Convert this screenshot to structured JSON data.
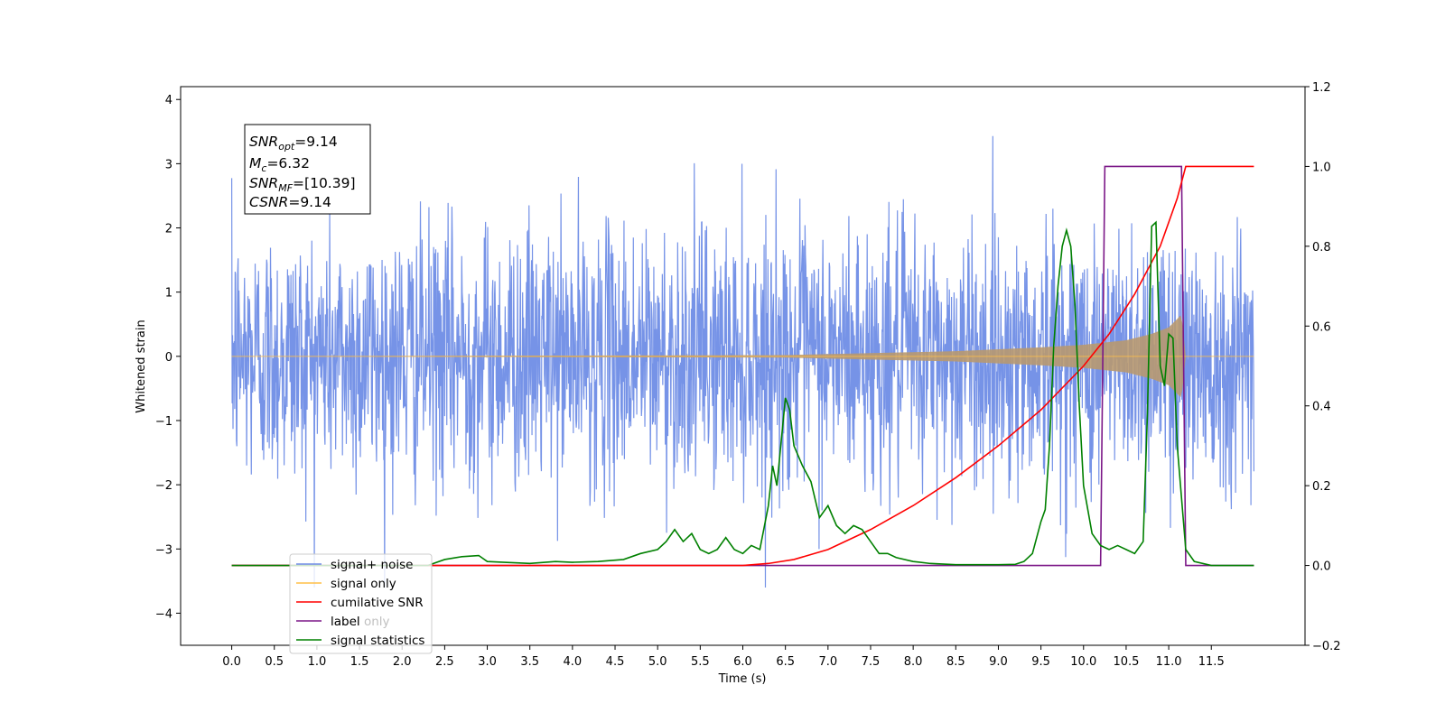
{
  "chart_data": {
    "type": "line",
    "xlabel": "Time (s)",
    "ylabel": "Whitened strain",
    "x_range": [
      -0.6,
      12.6
    ],
    "y_range": [
      -4.5,
      4.2
    ],
    "y2_range": [
      -0.2,
      1.2
    ],
    "x_ticks": [
      "0.0",
      "0.5",
      "1.0",
      "1.5",
      "2.0",
      "2.5",
      "3.0",
      "3.5",
      "4.0",
      "4.5",
      "5.0",
      "5.5",
      "6.0",
      "6.5",
      "7.0",
      "7.5",
      "8.0",
      "8.5",
      "9.0",
      "9.5",
      "10.0",
      "10.5",
      "11.0",
      "11.5"
    ],
    "y_ticks": [
      "4",
      "3",
      "2",
      "1",
      "0",
      "−1",
      "−2",
      "−3",
      "−4"
    ],
    "y2_ticks": [
      "1.2",
      "1.0",
      "0.8",
      "0.6",
      "0.4",
      "0.2",
      "0.0",
      "−0.2"
    ],
    "annotation": {
      "line1_main": "SNR",
      "line1_sub": "opt",
      "line1_value": "=9.14",
      "line2_main": "M",
      "line2_sub": "c",
      "line2_value": "=6.32",
      "line3_main": "SNR",
      "line3_sub": "MF",
      "line3_value": "=[10.39]",
      "line4_main": "CSNR",
      "line4_value": "=9.14"
    },
    "legend_position": "lower-left",
    "series": [
      {
        "name": "signal+ noise",
        "color": "#6f8de6",
        "axis": "left",
        "description_range": [
          -3.6,
          3.8
        ],
        "std_approx": 1.0,
        "x_start": 0.0,
        "x_end": 12.0
      },
      {
        "name": "signal only",
        "color": "#ffbf47",
        "axis": "left",
        "chirp_amplitude": [
          [
            0.0,
            0.0
          ],
          [
            6.5,
            0.02
          ],
          [
            7.5,
            0.05
          ],
          [
            8.5,
            0.08
          ],
          [
            9.5,
            0.14
          ],
          [
            10.0,
            0.18
          ],
          [
            10.5,
            0.25
          ],
          [
            10.8,
            0.35
          ],
          [
            11.0,
            0.45
          ],
          [
            11.15,
            0.65
          ],
          [
            11.2,
            0.0
          ],
          [
            12.0,
            0.0
          ]
        ]
      },
      {
        "name": "cumilative SNR",
        "color": "#ff0000",
        "axis": "right",
        "x": [
          0.0,
          6.0,
          6.3,
          6.6,
          7.0,
          7.5,
          8.0,
          8.5,
          9.0,
          9.5,
          10.0,
          10.3,
          10.6,
          10.9,
          11.1,
          11.2,
          11.3,
          12.0
        ],
        "y": [
          0.0,
          0.0,
          0.005,
          0.015,
          0.04,
          0.09,
          0.15,
          0.22,
          0.3,
          0.39,
          0.5,
          0.58,
          0.68,
          0.8,
          0.92,
          1.0,
          1.0,
          1.0
        ]
      },
      {
        "name": "label",
        "color": "#7b1787",
        "axis": "right",
        "x": [
          0.0,
          10.2,
          10.25,
          11.15,
          11.2,
          12.0
        ],
        "y": [
          0.0,
          0.0,
          1.0,
          1.0,
          0.0,
          0.0
        ]
      },
      {
        "name": "label only",
        "color": "#d9d9d9",
        "axis": "right",
        "x": [],
        "y": []
      },
      {
        "name": "signal statistics",
        "color": "#008000",
        "axis": "right",
        "x": [
          0.0,
          0.5,
          1.0,
          1.5,
          2.0,
          2.3,
          2.5,
          2.7,
          2.9,
          3.0,
          3.2,
          3.5,
          3.8,
          4.0,
          4.3,
          4.6,
          4.8,
          5.0,
          5.1,
          5.2,
          5.3,
          5.4,
          5.5,
          5.6,
          5.7,
          5.8,
          5.9,
          6.0,
          6.1,
          6.2,
          6.3,
          6.35,
          6.4,
          6.5,
          6.55,
          6.6,
          6.7,
          6.8,
          6.9,
          7.0,
          7.1,
          7.2,
          7.3,
          7.4,
          7.5,
          7.6,
          7.7,
          7.8,
          8.0,
          8.2,
          8.5,
          8.8,
          9.0,
          9.2,
          9.3,
          9.4,
          9.5,
          9.55,
          9.6,
          9.65,
          9.7,
          9.75,
          9.8,
          9.85,
          9.9,
          9.95,
          10.0,
          10.1,
          10.2,
          10.3,
          10.4,
          10.5,
          10.6,
          10.7,
          10.75,
          10.8,
          10.85,
          10.9,
          10.95,
          11.0,
          11.05,
          11.1,
          11.2,
          11.3,
          11.5,
          12.0
        ],
        "y": [
          0.0,
          0.0,
          0.0,
          0.0,
          0.0,
          0.0,
          0.015,
          0.022,
          0.025,
          0.01,
          0.008,
          0.005,
          0.01,
          0.008,
          0.01,
          0.015,
          0.03,
          0.04,
          0.06,
          0.09,
          0.06,
          0.08,
          0.04,
          0.03,
          0.04,
          0.07,
          0.04,
          0.03,
          0.05,
          0.04,
          0.15,
          0.25,
          0.2,
          0.42,
          0.39,
          0.3,
          0.25,
          0.21,
          0.12,
          0.15,
          0.1,
          0.08,
          0.1,
          0.09,
          0.06,
          0.03,
          0.03,
          0.02,
          0.01,
          0.005,
          0.002,
          0.002,
          0.002,
          0.003,
          0.01,
          0.03,
          0.11,
          0.14,
          0.3,
          0.55,
          0.7,
          0.8,
          0.84,
          0.8,
          0.65,
          0.4,
          0.2,
          0.08,
          0.05,
          0.04,
          0.05,
          0.04,
          0.03,
          0.06,
          0.38,
          0.85,
          0.86,
          0.5,
          0.45,
          0.58,
          0.57,
          0.3,
          0.04,
          0.01,
          0.0,
          0.0
        ]
      }
    ]
  }
}
